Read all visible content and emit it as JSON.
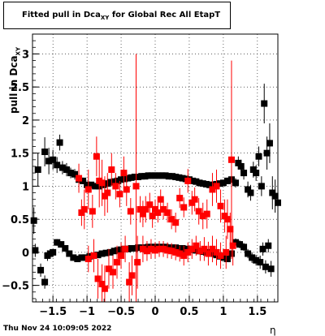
{
  "title": {
    "prefix": "Fitted pull in Dca",
    "sub": "XY",
    "suffix": " for Global Rec All EtapT"
  },
  "footer": "Thu Nov 24 10:09:05 2022",
  "chart_data": {
    "type": "scatter",
    "xlabel": "η",
    "ylabel": "pull in Dca",
    "ylabel_sub": "XY",
    "xlim": [
      -1.8,
      1.8
    ],
    "ylim": [
      -0.75,
      3.3
    ],
    "xticks": [
      -1.5,
      -1,
      -0.5,
      0,
      0.5,
      1,
      1.5
    ],
    "xtick_labels": [
      "−1.5",
      "−1",
      "−0.5",
      "0",
      "0.5",
      "1",
      "1.5"
    ],
    "yticks": [
      -0.5,
      0,
      0.5,
      1,
      1.5,
      2,
      2.5,
      3
    ],
    "ytick_labels": [
      "−0.5",
      "0",
      "0.5",
      "1",
      "1.5",
      "2",
      "2.5",
      "3"
    ],
    "grid": true,
    "series": [
      {
        "color": "#000000",
        "marker": "square",
        "points": [
          [
            -1.78,
            0.48,
            0.2
          ],
          [
            -1.72,
            1.25,
            0.25
          ],
          [
            -1.62,
            1.52,
            0.22
          ],
          [
            -1.56,
            1.38,
            0.2
          ],
          [
            -1.5,
            1.4,
            0.15
          ],
          [
            -1.44,
            1.32,
            0.12
          ],
          [
            -1.4,
            1.66,
            0.12
          ],
          [
            -1.36,
            1.28,
            0.1
          ],
          [
            -1.3,
            1.25,
            0.1
          ],
          [
            -1.24,
            1.2,
            0.08
          ],
          [
            -1.18,
            1.18,
            0.08
          ],
          [
            -1.12,
            1.1,
            0.06
          ],
          [
            -1.06,
            1.08,
            0.05
          ],
          [
            -1.0,
            1.02,
            0.05
          ],
          [
            -0.94,
            1.02,
            0.04
          ],
          [
            -0.88,
            1.0,
            0.04
          ],
          [
            -0.82,
            1.0,
            0.04
          ],
          [
            -0.76,
            1.02,
            0.03
          ],
          [
            -0.7,
            1.04,
            0.03
          ],
          [
            -0.65,
            1.06,
            0.03
          ],
          [
            -0.6,
            1.07,
            0.03
          ],
          [
            -0.55,
            1.08,
            0.03
          ],
          [
            -0.5,
            1.1,
            0.03
          ],
          [
            -0.45,
            1.11,
            0.03
          ],
          [
            -0.4,
            1.12,
            0.03
          ],
          [
            -0.35,
            1.13,
            0.03
          ],
          [
            -0.3,
            1.14,
            0.03
          ],
          [
            -0.25,
            1.14,
            0.03
          ],
          [
            -0.2,
            1.15,
            0.03
          ],
          [
            -0.15,
            1.15,
            0.03
          ],
          [
            -0.1,
            1.16,
            0.03
          ],
          [
            -0.05,
            1.16,
            0.03
          ],
          [
            0.0,
            1.16,
            0.03
          ],
          [
            0.05,
            1.16,
            0.03
          ],
          [
            0.1,
            1.16,
            0.03
          ],
          [
            0.15,
            1.16,
            0.03
          ],
          [
            0.2,
            1.15,
            0.03
          ],
          [
            0.25,
            1.15,
            0.03
          ],
          [
            0.3,
            1.14,
            0.03
          ],
          [
            0.35,
            1.13,
            0.03
          ],
          [
            0.4,
            1.12,
            0.03
          ],
          [
            0.45,
            1.11,
            0.03
          ],
          [
            0.5,
            1.1,
            0.03
          ],
          [
            0.55,
            1.08,
            0.03
          ],
          [
            0.6,
            1.07,
            0.03
          ],
          [
            0.65,
            1.05,
            0.03
          ],
          [
            0.7,
            1.04,
            0.03
          ],
          [
            0.75,
            1.03,
            0.03
          ],
          [
            0.8,
            1.02,
            0.03
          ],
          [
            0.85,
            1.02,
            0.04
          ],
          [
            0.9,
            1.03,
            0.04
          ],
          [
            0.95,
            1.04,
            0.04
          ],
          [
            1.0,
            1.05,
            0.04
          ],
          [
            1.06,
            1.08,
            0.05
          ],
          [
            1.12,
            1.1,
            0.06
          ],
          [
            1.18,
            1.05,
            0.07
          ],
          [
            1.22,
            1.35,
            0.1
          ],
          [
            1.26,
            1.3,
            0.1
          ],
          [
            1.3,
            1.2,
            0.1
          ],
          [
            1.36,
            0.95,
            0.12
          ],
          [
            1.4,
            0.9,
            0.12
          ],
          [
            1.44,
            1.25,
            0.12
          ],
          [
            1.48,
            1.2,
            0.12
          ],
          [
            1.52,
            1.45,
            0.15
          ],
          [
            1.56,
            1.0,
            0.15
          ],
          [
            1.6,
            2.25,
            0.3
          ],
          [
            1.64,
            1.5,
            0.25
          ],
          [
            1.68,
            1.65,
            0.3
          ],
          [
            1.72,
            0.9,
            0.25
          ],
          [
            1.76,
            0.85,
            0.25
          ],
          [
            1.8,
            0.75,
            0.3
          ],
          [
            1.84,
            0.6,
            0.3
          ],
          [
            -1.76,
            0.03,
            0.1
          ],
          [
            -1.68,
            -0.27,
            0.1
          ],
          [
            -1.62,
            -0.45,
            0.1
          ],
          [
            -1.58,
            -0.05,
            0.08
          ],
          [
            -1.54,
            -0.02,
            0.06
          ],
          [
            -1.5,
            0.0,
            0.05
          ],
          [
            -1.44,
            0.15,
            0.05
          ],
          [
            -1.38,
            0.12,
            0.04
          ],
          [
            -1.32,
            0.06,
            0.04
          ],
          [
            -1.26,
            -0.02,
            0.04
          ],
          [
            -1.2,
            -0.08,
            0.03
          ],
          [
            -1.14,
            -0.1,
            0.03
          ],
          [
            -1.08,
            -0.08,
            0.03
          ],
          [
            -1.02,
            -0.08,
            0.03
          ],
          [
            -0.96,
            -0.06,
            0.03
          ],
          [
            -0.9,
            -0.05,
            0.03
          ],
          [
            -0.84,
            -0.04,
            0.03
          ],
          [
            -0.78,
            -0.02,
            0.03
          ],
          [
            -0.72,
            -0.01,
            0.03
          ],
          [
            -0.66,
            0.0,
            0.03
          ],
          [
            -0.6,
            0.02,
            0.03
          ],
          [
            -0.55,
            0.03,
            0.03
          ],
          [
            -0.5,
            0.04,
            0.03
          ],
          [
            -0.45,
            0.05,
            0.03
          ],
          [
            -0.4,
            0.05,
            0.03
          ],
          [
            -0.35,
            0.06,
            0.03
          ],
          [
            -0.3,
            0.06,
            0.03
          ],
          [
            -0.25,
            0.07,
            0.03
          ],
          [
            -0.2,
            0.07,
            0.03
          ],
          [
            -0.15,
            0.07,
            0.03
          ],
          [
            -0.1,
            0.08,
            0.03
          ],
          [
            -0.05,
            0.08,
            0.03
          ],
          [
            0.0,
            0.08,
            0.03
          ],
          [
            0.05,
            0.08,
            0.03
          ],
          [
            0.1,
            0.08,
            0.03
          ],
          [
            0.15,
            0.08,
            0.03
          ],
          [
            0.2,
            0.07,
            0.03
          ],
          [
            0.25,
            0.07,
            0.03
          ],
          [
            0.3,
            0.07,
            0.03
          ],
          [
            0.35,
            0.06,
            0.03
          ],
          [
            0.4,
            0.06,
            0.03
          ],
          [
            0.45,
            0.05,
            0.03
          ],
          [
            0.5,
            0.05,
            0.03
          ],
          [
            0.55,
            0.04,
            0.03
          ],
          [
            0.6,
            0.03,
            0.03
          ],
          [
            0.65,
            0.02,
            0.03
          ],
          [
            0.7,
            0.01,
            0.03
          ],
          [
            0.75,
            0.0,
            0.03
          ],
          [
            0.8,
            -0.01,
            0.03
          ],
          [
            0.85,
            -0.02,
            0.03
          ],
          [
            0.9,
            -0.04,
            0.03
          ],
          [
            0.95,
            -0.06,
            0.03
          ],
          [
            1.0,
            -0.08,
            0.03
          ],
          [
            1.06,
            -0.1,
            0.04
          ],
          [
            1.12,
            -0.02,
            0.05
          ],
          [
            1.18,
            0.15,
            0.06
          ],
          [
            1.24,
            0.12,
            0.06
          ],
          [
            1.3,
            0.08,
            0.06
          ],
          [
            1.36,
            -0.02,
            0.07
          ],
          [
            1.42,
            -0.08,
            0.08
          ],
          [
            1.48,
            -0.12,
            0.08
          ],
          [
            1.54,
            -0.15,
            0.1
          ],
          [
            1.58,
            0.05,
            0.1
          ],
          [
            1.62,
            -0.22,
            0.1
          ],
          [
            1.66,
            0.1,
            0.1
          ],
          [
            1.7,
            -0.25,
            0.12
          ]
        ]
      },
      {
        "color": "#ff0000",
        "marker": "square",
        "points": [
          [
            -1.12,
            1.12,
            0.22
          ],
          [
            -1.08,
            0.6,
            0.2
          ],
          [
            -1.04,
            0.65,
            0.3
          ],
          [
            -0.98,
            0.95,
            0.3
          ],
          [
            -0.92,
            0.62,
            0.25
          ],
          [
            -0.86,
            1.45,
            0.3
          ],
          [
            -0.82,
            1.08,
            0.4
          ],
          [
            -0.78,
            1.05,
            0.35
          ],
          [
            -0.74,
            0.85,
            0.3
          ],
          [
            -0.7,
            0.9,
            0.3
          ],
          [
            -0.64,
            1.25,
            0.25
          ],
          [
            -0.58,
            1.0,
            0.2
          ],
          [
            -0.52,
            0.88,
            0.2
          ],
          [
            -0.46,
            1.2,
            0.25
          ],
          [
            -0.42,
            0.95,
            0.25
          ],
          [
            -0.36,
            0.62,
            0.2
          ],
          [
            -0.28,
            1.0,
            2.0
          ],
          [
            -0.22,
            0.65,
            0.2
          ],
          [
            -0.18,
            0.58,
            0.2
          ],
          [
            -0.14,
            0.65,
            0.2
          ],
          [
            -0.08,
            0.72,
            0.18
          ],
          [
            -0.04,
            0.55,
            0.18
          ],
          [
            0.0,
            0.65,
            0.15
          ],
          [
            0.04,
            0.6,
            0.15
          ],
          [
            0.08,
            0.8,
            0.15
          ],
          [
            0.12,
            0.65,
            0.15
          ],
          [
            0.18,
            0.6,
            0.15
          ],
          [
            0.24,
            0.5,
            0.15
          ],
          [
            0.3,
            0.45,
            0.15
          ],
          [
            0.36,
            0.82,
            0.15
          ],
          [
            0.42,
            0.68,
            0.15
          ],
          [
            0.48,
            1.08,
            0.18
          ],
          [
            0.54,
            0.75,
            0.18
          ],
          [
            0.58,
            0.8,
            0.18
          ],
          [
            0.64,
            0.62,
            0.2
          ],
          [
            0.7,
            0.55,
            0.2
          ],
          [
            0.76,
            0.58,
            0.22
          ],
          [
            0.84,
            0.95,
            0.25
          ],
          [
            0.9,
            1.0,
            0.25
          ],
          [
            0.96,
            0.7,
            0.25
          ],
          [
            1.02,
            0.55,
            0.25
          ],
          [
            1.06,
            0.5,
            0.3
          ],
          [
            1.12,
            1.4,
            1.5
          ],
          [
            -0.98,
            -0.1,
            0.2
          ],
          [
            -0.9,
            -0.05,
            0.25
          ],
          [
            -0.84,
            -0.4,
            0.3
          ],
          [
            -0.78,
            -0.48,
            0.3
          ],
          [
            -0.74,
            -0.55,
            0.35
          ],
          [
            -0.68,
            -0.25,
            0.3
          ],
          [
            -0.62,
            -0.3,
            0.25
          ],
          [
            -0.56,
            -0.15,
            0.25
          ],
          [
            -0.5,
            -0.05,
            0.2
          ],
          [
            -0.44,
            0.05,
            0.2
          ],
          [
            -0.38,
            -0.45,
            0.3
          ],
          [
            -0.34,
            -0.35,
            0.3
          ],
          [
            -0.26,
            -0.15,
            0.4
          ],
          [
            -0.18,
            0.05,
            0.2
          ],
          [
            -0.12,
            0.02,
            0.15
          ],
          [
            -0.06,
            0.05,
            0.15
          ],
          [
            0.0,
            0.03,
            0.12
          ],
          [
            0.06,
            0.05,
            0.12
          ],
          [
            0.12,
            0.05,
            0.12
          ],
          [
            0.18,
            0.03,
            0.12
          ],
          [
            0.24,
            0.02,
            0.12
          ],
          [
            0.3,
            0.0,
            0.12
          ],
          [
            0.36,
            -0.02,
            0.12
          ],
          [
            0.42,
            -0.05,
            0.15
          ],
          [
            0.48,
            0.0,
            0.15
          ],
          [
            0.54,
            0.05,
            0.15
          ],
          [
            0.6,
            0.1,
            0.15
          ],
          [
            0.66,
            0.02,
            0.15
          ],
          [
            0.72,
            0.05,
            0.18
          ],
          [
            0.78,
            -0.02,
            0.18
          ],
          [
            0.84,
            0.05,
            0.2
          ],
          [
            0.9,
            0.0,
            0.2
          ],
          [
            0.96,
            -0.05,
            0.2
          ],
          [
            1.04,
            0.0,
            0.25
          ],
          [
            1.1,
            0.35,
            0.25
          ],
          [
            1.14,
            0.1,
            0.3
          ]
        ]
      }
    ]
  }
}
